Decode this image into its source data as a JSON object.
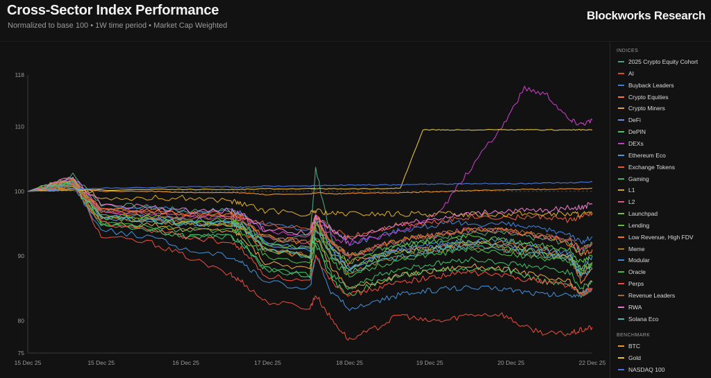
{
  "header": {
    "title": "Cross-Sector Index Performance",
    "subtitle": "Normalized to base 100 • 1W time period • Market Cap Weighted",
    "brand": "Blockworks Research"
  },
  "legend": {
    "indices_heading": "INDICES",
    "benchmark_heading": "BENCHMARK"
  },
  "chart_data": {
    "type": "line",
    "title": "Cross-Sector Index Performance",
    "subtitle": "Normalized to base 100 • 1W time period • Market Cap Weighted",
    "ylim": [
      75,
      118
    ],
    "yticks": [
      75,
      80,
      90,
      100,
      110,
      118
    ],
    "baseline": 100,
    "grid": false,
    "legend_position": "right",
    "x_labels": [
      "15 Dec 25",
      "15 Dec 25",
      "16 Dec 25",
      "17 Dec 25",
      "18 Dec 25",
      "19 Dec 25",
      "20 Dec 25",
      "22 Dec 25"
    ],
    "x_label_positions": [
      0,
      0.13,
      0.28,
      0.425,
      0.57,
      0.712,
      0.856,
      1.0
    ],
    "time_points": [
      0,
      0.08,
      0.13,
      0.22,
      0.28,
      0.36,
      0.38,
      0.42,
      0.5,
      0.51,
      0.54,
      0.57,
      0.62,
      0.66,
      0.7,
      0.74,
      0.78,
      0.84,
      0.88,
      0.92,
      0.96,
      0.98,
      1.0
    ],
    "series": [
      {
        "name": "2025 Crypto Equity Cohort",
        "group": "indices",
        "color": "#4fa37a",
        "values": [
          100,
          102.5,
          98,
          97.5,
          97,
          97,
          96.5,
          92,
          93,
          103.5,
          92,
          90,
          91,
          92,
          92.5,
          93,
          93.5,
          93.5,
          93,
          92.5,
          92,
          90.5,
          92
        ]
      },
      {
        "name": "AI",
        "group": "indices",
        "color": "#e0493a",
        "values": [
          100,
          101.5,
          93,
          92,
          90,
          87,
          86,
          83,
          82,
          84,
          80,
          77,
          79,
          81,
          80,
          80,
          81,
          81,
          79,
          78,
          78,
          78.5,
          79
        ]
      },
      {
        "name": "Buyback Leaders",
        "group": "indices",
        "color": "#3f7fd1",
        "values": [
          100,
          101,
          97,
          97.5,
          97,
          97,
          96.5,
          95,
          94,
          96,
          94,
          92,
          93,
          94,
          94.5,
          95,
          95,
          95,
          94.5,
          94,
          93.5,
          92,
          93
        ]
      },
      {
        "name": "Crypto Equities",
        "group": "indices",
        "color": "#ef7f3a",
        "values": [
          100,
          102,
          97,
          96,
          95,
          95,
          94,
          91,
          90,
          96,
          91,
          89,
          90,
          91,
          91,
          91.5,
          92,
          92,
          91.5,
          91,
          90,
          86,
          88
        ]
      },
      {
        "name": "Crypto Miners",
        "group": "indices",
        "color": "#e2a04a",
        "values": [
          100,
          101,
          95,
          95,
          94,
          94,
          93,
          89,
          88,
          93,
          88,
          85,
          86,
          87,
          87.5,
          88,
          88.5,
          88,
          87.5,
          86.5,
          86,
          84,
          86
        ]
      },
      {
        "name": "DeFi",
        "group": "indices",
        "color": "#6f8fd8",
        "values": [
          100,
          101.5,
          96,
          95.5,
          95,
          95,
          94.5,
          92,
          91,
          96,
          91,
          88,
          90,
          91,
          91,
          91.5,
          92,
          92,
          91,
          90.5,
          90,
          87,
          89
        ]
      },
      {
        "name": "DePIN",
        "group": "indices",
        "color": "#4cc36a",
        "values": [
          100,
          102,
          95,
          94,
          93,
          93,
          92,
          88,
          87,
          92,
          86,
          84,
          86,
          87,
          87.5,
          88,
          88,
          88,
          87,
          86,
          85.5,
          84,
          85
        ]
      },
      {
        "name": "DEXs",
        "group": "indices",
        "color": "#c23ec2",
        "values": [
          100,
          102,
          97,
          96.5,
          96,
          96,
          96,
          94,
          93,
          96,
          93,
          92,
          93,
          94,
          95,
          98,
          103,
          110,
          116,
          115,
          111,
          110.5,
          111
        ]
      },
      {
        "name": "Ethereum Eco",
        "group": "indices",
        "color": "#4a9ad8",
        "values": [
          100,
          101.5,
          96,
          96,
          95.5,
          95.5,
          95,
          92,
          91,
          95,
          91,
          88,
          90,
          91,
          92,
          92,
          92.5,
          92.5,
          92,
          91,
          90.5,
          88,
          90
        ]
      },
      {
        "name": "Exchange Tokens",
        "group": "indices",
        "color": "#e05a3a",
        "values": [
          100,
          101,
          97,
          97,
          96.5,
          96.5,
          96,
          95,
          94,
          96,
          94,
          93,
          94,
          95,
          95,
          95.5,
          96,
          96,
          96,
          96,
          95.5,
          96,
          96.5
        ]
      },
      {
        "name": "Gaming",
        "group": "indices",
        "color": "#3eb866",
        "values": [
          100,
          101,
          95,
          94,
          93,
          93,
          92,
          88,
          87,
          92,
          87,
          85,
          87,
          88,
          88.5,
          89,
          89.5,
          89,
          88.5,
          88,
          87.5,
          85,
          86
        ]
      },
      {
        "name": "L1",
        "group": "indices",
        "color": "#d4a52a",
        "values": [
          100,
          101,
          99,
          99,
          99,
          98.5,
          98,
          97,
          96.5,
          97,
          96.5,
          96.5,
          96.5,
          96.5,
          96.5,
          96.5,
          96.5,
          96.5,
          96.5,
          96.5,
          96.5,
          96.5,
          96.5
        ]
      },
      {
        "name": "L2",
        "group": "indices",
        "color": "#d65a8c",
        "values": [
          100,
          102,
          97,
          96.5,
          96,
          96,
          95.5,
          93,
          92,
          95,
          92,
          90,
          91.5,
          92.5,
          93,
          93.5,
          94,
          94,
          93.5,
          93,
          92.5,
          91,
          92
        ]
      },
      {
        "name": "Launchpad",
        "group": "indices",
        "color": "#7ac04a",
        "values": [
          100,
          102,
          96,
          95.5,
          95,
          95,
          94.5,
          91,
          90,
          95,
          90,
          88,
          89.5,
          90.5,
          91,
          91.5,
          92,
          91.5,
          91,
          90.5,
          90,
          88,
          89
        ]
      },
      {
        "name": "Lending",
        "group": "indices",
        "color": "#5dbf3a",
        "values": [
          100,
          101.5,
          96,
          96,
          95.5,
          95.5,
          95,
          92,
          91,
          95,
          91,
          89,
          90.5,
          91.5,
          92,
          92.5,
          93,
          92.5,
          92,
          91.5,
          91,
          89,
          90
        ]
      },
      {
        "name": "Low Revenue, High FDV",
        "group": "indices",
        "color": "#f07a2a",
        "values": [
          100,
          101.5,
          97,
          97,
          96.5,
          96.5,
          96,
          93,
          92,
          96,
          92,
          90,
          91.5,
          92.5,
          93,
          93.5,
          94,
          94,
          93.5,
          93,
          92,
          90,
          91
        ]
      },
      {
        "name": "Meme",
        "group": "indices",
        "color": "#b0782a",
        "values": [
          100,
          101.5,
          96,
          95.5,
          95,
          95,
          94.5,
          91,
          90,
          94,
          90,
          87,
          89,
          90,
          90.5,
          91,
          91.5,
          91,
          90.5,
          90,
          89.5,
          87,
          89
        ]
      },
      {
        "name": "Modular",
        "group": "indices",
        "color": "#3f8ad0",
        "values": [
          100,
          101,
          94,
          93,
          91,
          90,
          89,
          86,
          85,
          90,
          84,
          82,
          83,
          84,
          84.5,
          85,
          85,
          85,
          84.5,
          84,
          84,
          84,
          85
        ]
      },
      {
        "name": "Oracle",
        "group": "indices",
        "color": "#49b84a",
        "values": [
          100,
          101,
          95,
          94.5,
          94,
          94,
          93.5,
          90,
          89,
          93,
          89,
          87,
          88.5,
          89.5,
          90,
          90.5,
          91,
          90.5,
          90,
          89.5,
          89,
          87.5,
          88.5
        ]
      },
      {
        "name": "Perps",
        "group": "indices",
        "color": "#ef4a3a",
        "values": [
          100,
          101,
          95,
          94,
          93,
          92,
          91,
          87,
          86,
          90,
          86,
          84,
          85,
          86,
          86.5,
          87,
          87.5,
          87,
          86.5,
          86,
          85.5,
          84,
          85
        ]
      },
      {
        "name": "Revenue Leaders",
        "group": "indices",
        "color": "#9a6a3a",
        "values": [
          100,
          101,
          97,
          96.5,
          96,
          96,
          95.5,
          93,
          92,
          95,
          92,
          90,
          91.5,
          92.5,
          93,
          93.5,
          94,
          94,
          93.5,
          93,
          92.5,
          91,
          92
        ]
      },
      {
        "name": "RWA",
        "group": "indices",
        "color": "#e07ac8",
        "values": [
          100,
          102,
          98,
          97.5,
          97,
          97,
          96.5,
          94,
          93.5,
          96,
          94,
          92.5,
          94,
          95,
          95.5,
          96,
          96.5,
          97,
          97,
          97,
          97.5,
          97.5,
          98
        ]
      },
      {
        "name": "Solana Eco",
        "group": "indices",
        "color": "#4ab8b8",
        "values": [
          100,
          101,
          96,
          95.5,
          95,
          95,
          94.5,
          91,
          90,
          94,
          90,
          87.5,
          89,
          90,
          90.5,
          91,
          91.5,
          91,
          90.5,
          90,
          89.5,
          87,
          88
        ]
      },
      {
        "name": "BTC",
        "group": "benchmark",
        "color": "#f2952c",
        "values": [
          100,
          100.5,
          100,
          100,
          99.8,
          99.8,
          99.8,
          99.5,
          99.6,
          99.8,
          99.6,
          99.7,
          99.8,
          99.8,
          99.9,
          100,
          100.1,
          100.2,
          100.3,
          100.3,
          100.4,
          100.4,
          100.5
        ]
      },
      {
        "name": "Gold",
        "group": "benchmark",
        "color": "#e8c23a",
        "values": [
          100,
          100.2,
          100.2,
          100.3,
          100.3,
          100.3,
          100.3,
          100.4,
          100.4,
          100.4,
          100.4,
          100.4,
          100.4,
          100.5,
          109.5,
          109.5,
          109.5,
          109.5,
          109.5,
          109.5,
          109.5,
          109.5,
          109.5
        ]
      },
      {
        "name": "NASDAQ 100",
        "group": "benchmark",
        "color": "#4a78e0",
        "values": [
          100,
          100.3,
          100.5,
          100.6,
          100.7,
          100.7,
          100.6,
          100.8,
          100.8,
          100.9,
          100.9,
          101,
          101,
          101,
          101.1,
          101.1,
          101.2,
          101.2,
          101.2,
          101.3,
          101.3,
          101.4,
          101.5
        ]
      }
    ]
  }
}
